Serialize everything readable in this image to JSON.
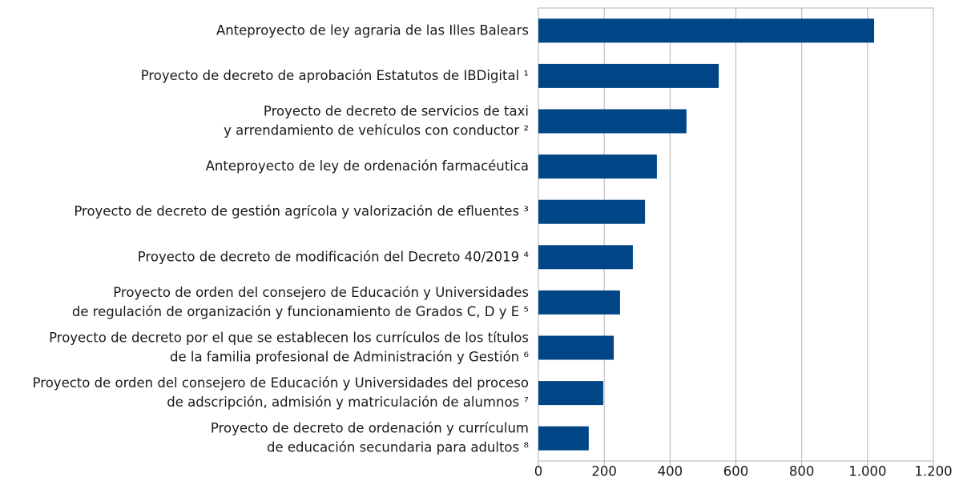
{
  "chart_data": {
    "type": "barh",
    "categories": [
      "Anteproyecto de ley agraria de las Illes Balears",
      "Proyecto de decreto de aprobación Estatutos de IBDigital ¹",
      "Proyecto de decreto de servicios de taxi\ny arrendamiento de vehículos con conductor ²",
      "Anteproyecto de ley de ordenación farmacéutica",
      "Proyecto de decreto de gestión agrícola y valorización de efluentes ³",
      "Proyecto de decreto de modificación del Decreto 40/2019 ⁴",
      "Proyecto de orden del consejero de Educación y Universidades\nde regulación de organización y funcionamiento de Grados C, D y E ⁵",
      "Proyecto de decreto por el que se establecen los currículos de los títulos\nde la familia profesional de Administración y Gestión ⁶",
      "Proyecto de orden del consejero de Educación y Universidades del proceso\nde adscripción, admisión y matriculación de alumnos ⁷",
      "Proyecto de decreto de ordenación y currículum\nde educación secundaria para adultos ⁸"
    ],
    "values": [
      1020,
      548,
      450,
      360,
      324,
      287,
      248,
      229,
      197,
      153
    ],
    "color": "#004586",
    "xlim": [
      0,
      1200
    ],
    "xticks": [
      0,
      200,
      400,
      600,
      800,
      {
        "value": 1000,
        "label": "1.000"
      },
      {
        "value": 1200,
        "label": "1.200"
      }
    ],
    "grid": true
  }
}
